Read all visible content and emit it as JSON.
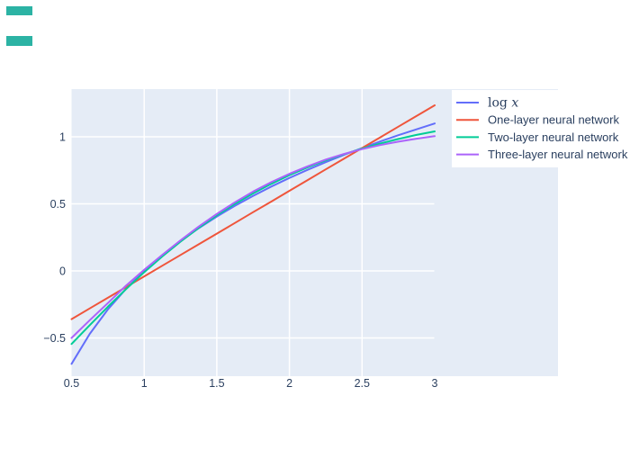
{
  "page": {
    "background": "#ffffff"
  },
  "decor": {
    "teal_bar_color": "#2cb3a4",
    "bar_count": 2
  },
  "chart_data": {
    "type": "line",
    "title": "",
    "xlabel": "",
    "ylabel": "",
    "plot_bgcolor": "#E5ECF6",
    "grid_color": "#FFFFFF",
    "tick_color": "#2a3f5f",
    "grid": true,
    "xlim": [
      0.5,
      3.86
    ],
    "ylim": [
      -0.785,
      1.356
    ],
    "x_ticks": {
      "values": [
        0.5,
        1,
        1.5,
        2,
        2.5,
        3
      ],
      "labels": [
        "0.5",
        "1",
        "1.5",
        "2",
        "2.5",
        "3"
      ]
    },
    "y_ticks": {
      "values": [
        1,
        0.5,
        0,
        -0.5
      ],
      "labels": [
        "1",
        "0.5",
        "0",
        "−0.5"
      ]
    },
    "legend": {
      "position": "top-right",
      "bgcolor": "#FFFFFF",
      "items": [
        "log x",
        "One-layer neural network",
        "Two-layer neural network",
        "Three-layer neural network"
      ]
    },
    "x": [
      0.5,
      0.625,
      0.75,
      0.875,
      1,
      1.125,
      1.25,
      1.375,
      1.5,
      1.625,
      1.75,
      1.875,
      2,
      2.125,
      2.25,
      2.375,
      2.5,
      2.625,
      2.75,
      2.875,
      3
    ],
    "series": [
      {
        "name": "log x",
        "color": "#636EFA",
        "math_font": true,
        "y": [
          -0.693,
          -0.47,
          -0.288,
          -0.134,
          0.0,
          0.118,
          0.223,
          0.318,
          0.405,
          0.486,
          0.56,
          0.629,
          0.693,
          0.754,
          0.811,
          0.865,
          0.916,
          0.965,
          1.012,
          1.056,
          1.099
        ]
      },
      {
        "name": "One-layer neural network",
        "color": "#EF553B",
        "math_font": false,
        "y": [
          -0.36,
          -0.28,
          -0.201,
          -0.121,
          -0.041,
          0.039,
          0.119,
          0.198,
          0.278,
          0.358,
          0.438,
          0.517,
          0.597,
          0.677,
          0.757,
          0.836,
          0.916,
          0.996,
          1.076,
          1.155,
          1.235
        ]
      },
      {
        "name": "Two-layer neural network",
        "color": "#00CC96",
        "math_font": false,
        "y": [
          -0.545,
          -0.405,
          -0.268,
          -0.136,
          -0.01,
          0.108,
          0.218,
          0.32,
          0.414,
          0.5,
          0.578,
          0.649,
          0.714,
          0.772,
          0.824,
          0.87,
          0.912,
          0.95,
          0.984,
          1.014,
          1.04
        ]
      },
      {
        "name": "Three-layer neural network",
        "color": "#AB63FA",
        "math_font": false,
        "y": [
          -0.5,
          -0.368,
          -0.24,
          -0.11,
          0.008,
          0.12,
          0.228,
          0.33,
          0.425,
          0.512,
          0.592,
          0.662,
          0.724,
          0.78,
          0.83,
          0.872,
          0.908,
          0.938,
          0.964,
          0.986,
          1.005
        ]
      }
    ]
  }
}
